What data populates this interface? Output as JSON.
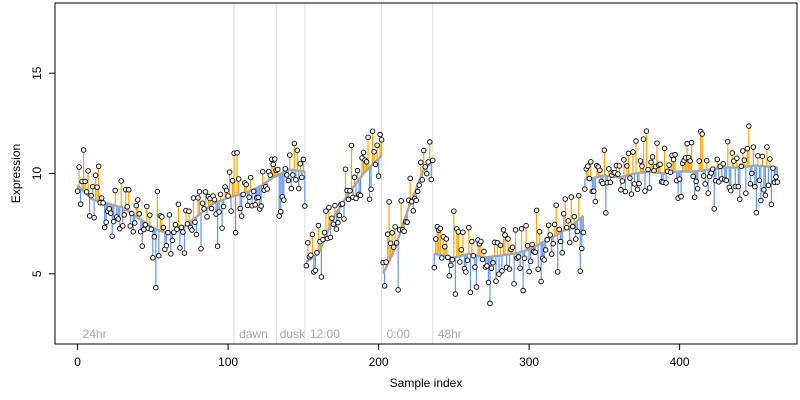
{
  "chart_data": {
    "type": "scatter",
    "title": "",
    "xlabel": "Sample index",
    "ylabel": "Expression",
    "xlim": [
      -15,
      478
    ],
    "ylim": [
      1.5,
      18.5
    ],
    "xticks": [
      0,
      100,
      200,
      300,
      400
    ],
    "yticks": [
      5,
      10,
      15
    ],
    "grid": false,
    "legend": "none",
    "colors": {
      "points_stroke": "#000000",
      "points_fill": "#ffffff",
      "fitted_line": "#a6a6a6",
      "above_residual": "#ffa500",
      "below_residual": "#6495ed",
      "separator": "#dcdcdc",
      "annotation": "#a6a6a6"
    },
    "separators": [
      104,
      132,
      151,
      202,
      236
    ],
    "annotations": [
      {
        "x": 2,
        "label": "24hr"
      },
      {
        "x": 106,
        "label": "dawn"
      },
      {
        "x": 133,
        "label": "dusk"
      },
      {
        "x": 153,
        "label": "12:00"
      },
      {
        "x": 204,
        "label": "0:00"
      },
      {
        "x": 238,
        "label": "48hr"
      }
    ],
    "trend_segments": [
      {
        "from": 0,
        "to": 151,
        "knots": [
          [
            0,
            9.4
          ],
          [
            10,
            8.7
          ],
          [
            20,
            8.5
          ],
          [
            30,
            8.3
          ],
          [
            40,
            7.8
          ],
          [
            50,
            7.3
          ],
          [
            60,
            7.0
          ],
          [
            70,
            7.3
          ],
          [
            80,
            7.9
          ],
          [
            90,
            8.5
          ],
          [
            100,
            8.8
          ],
          [
            110,
            9.0
          ],
          [
            120,
            9.3
          ],
          [
            130,
            9.8
          ],
          [
            140,
            10.2
          ],
          [
            151,
            10.1
          ]
        ]
      },
      {
        "from": 152,
        "to": 202,
        "knots": [
          [
            152,
            5.6
          ],
          [
            160,
            6.0
          ],
          [
            170,
            7.8
          ],
          [
            180,
            9.0
          ],
          [
            190,
            10.0
          ],
          [
            202,
            10.9
          ]
        ]
      },
      {
        "from": 203,
        "to": 236,
        "knots": [
          [
            203,
            5.0
          ],
          [
            210,
            6.1
          ],
          [
            220,
            8.3
          ],
          [
            230,
            10.2
          ],
          [
            236,
            10.6
          ]
        ]
      },
      {
        "from": 237,
        "to": 336,
        "knots": [
          [
            237,
            6.0
          ],
          [
            250,
            5.8
          ],
          [
            260,
            6.0
          ],
          [
            270,
            5.8
          ],
          [
            280,
            5.9
          ],
          [
            290,
            6.0
          ],
          [
            300,
            6.2
          ],
          [
            310,
            6.6
          ],
          [
            320,
            7.0
          ],
          [
            330,
            7.5
          ],
          [
            336,
            7.9
          ]
        ]
      },
      {
        "from": 337,
        "to": 466,
        "knots": [
          [
            337,
            9.7
          ],
          [
            350,
            9.9
          ],
          [
            360,
            9.8
          ],
          [
            370,
            10.0
          ],
          [
            380,
            10.1
          ],
          [
            390,
            10.0
          ],
          [
            400,
            10.1
          ],
          [
            410,
            10.1
          ],
          [
            420,
            10.2
          ],
          [
            430,
            10.3
          ],
          [
            440,
            10.3
          ],
          [
            450,
            10.4
          ],
          [
            466,
            10.3
          ]
        ]
      }
    ],
    "points": {
      "n": 466,
      "seed": 7,
      "noise_sd": 0.9
    }
  }
}
